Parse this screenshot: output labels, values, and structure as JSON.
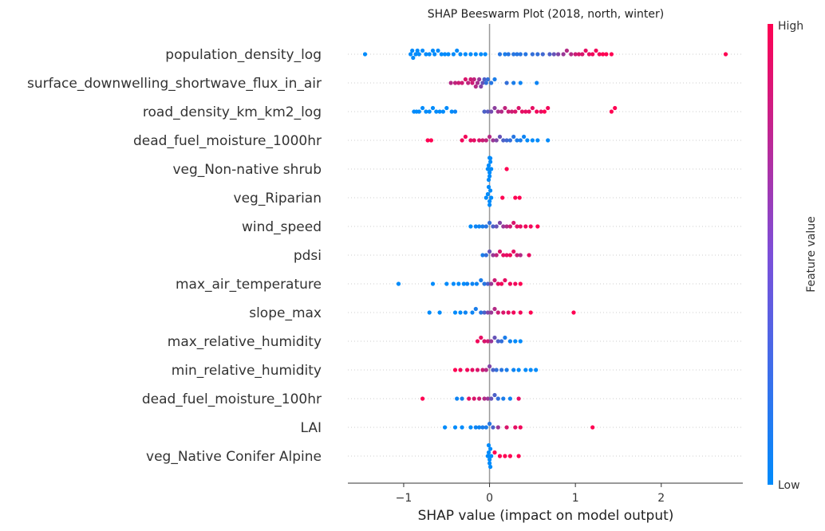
{
  "chart_data": {
    "type": "scatter",
    "subtype": "beeswarm",
    "title": "SHAP Beeswarm Plot (2018, north, winter)",
    "xlabel": "SHAP value (impact on model output)",
    "xlim": [
      -1.65,
      2.95
    ],
    "xticks": [
      -1,
      0,
      1,
      2
    ],
    "xtick_labels": [
      "−1",
      "0",
      "1",
      "2"
    ],
    "colorbar": {
      "label": "Feature value",
      "high_label": "High",
      "low_label": "Low",
      "low_color": "#008bfb",
      "high_color": "#ff0052"
    },
    "features": [
      {
        "name": "population_density_log",
        "points": [
          [
            -1.45,
            0.0
          ],
          [
            -0.92,
            0.0
          ],
          [
            -0.9,
            0.0
          ],
          [
            -0.89,
            0.0
          ],
          [
            -0.86,
            0.0
          ],
          [
            -0.84,
            0.0
          ],
          [
            -0.82,
            0.0
          ],
          [
            -0.78,
            0.0
          ],
          [
            -0.74,
            0.0
          ],
          [
            -0.7,
            0.0
          ],
          [
            -0.66,
            0.0
          ],
          [
            -0.64,
            0.0
          ],
          [
            -0.6,
            0.0
          ],
          [
            -0.56,
            0.0
          ],
          [
            -0.52,
            0.0
          ],
          [
            -0.48,
            0.0
          ],
          [
            -0.42,
            0.0
          ],
          [
            -0.38,
            0.0
          ],
          [
            -0.34,
            0.0
          ],
          [
            -0.28,
            0.0
          ],
          [
            -0.22,
            0.0
          ],
          [
            -0.16,
            0.0
          ],
          [
            -0.1,
            0.0
          ],
          [
            -0.05,
            0.0
          ],
          [
            0.12,
            0.15
          ],
          [
            0.18,
            0.1
          ],
          [
            0.22,
            0.15
          ],
          [
            0.28,
            0.15
          ],
          [
            0.32,
            0.15
          ],
          [
            0.36,
            0.15
          ],
          [
            0.42,
            0.15
          ],
          [
            0.5,
            0.2
          ],
          [
            0.56,
            0.2
          ],
          [
            0.62,
            0.25
          ],
          [
            0.7,
            0.3
          ],
          [
            0.75,
            0.4
          ],
          [
            0.8,
            0.5
          ],
          [
            0.86,
            0.6
          ],
          [
            0.9,
            0.7
          ],
          [
            0.95,
            0.7
          ],
          [
            1.0,
            0.8
          ],
          [
            1.04,
            0.85
          ],
          [
            1.08,
            0.85
          ],
          [
            1.12,
            0.9
          ],
          [
            1.16,
            0.9
          ],
          [
            1.2,
            0.95
          ],
          [
            1.24,
            0.95
          ],
          [
            1.28,
            0.95
          ],
          [
            1.32,
            1.0
          ],
          [
            1.36,
            1.0
          ],
          [
            1.42,
            1.0
          ],
          [
            2.75,
            1.0
          ]
        ]
      },
      {
        "name": "surface_downwelling_shortwave_flux_in_air",
        "points": [
          [
            -0.45,
            0.7
          ],
          [
            -0.4,
            0.75
          ],
          [
            -0.36,
            0.8
          ],
          [
            -0.32,
            0.8
          ],
          [
            -0.28,
            0.85
          ],
          [
            -0.25,
            0.75
          ],
          [
            -0.22,
            0.8
          ],
          [
            -0.2,
            0.8
          ],
          [
            -0.18,
            0.75
          ],
          [
            -0.16,
            0.7
          ],
          [
            -0.14,
            0.65
          ],
          [
            -0.12,
            0.6
          ],
          [
            -0.1,
            0.5
          ],
          [
            -0.08,
            0.4
          ],
          [
            -0.06,
            0.3
          ],
          [
            -0.04,
            0.2
          ],
          [
            -0.02,
            0.2
          ],
          [
            0.02,
            0.15
          ],
          [
            0.06,
            0.1
          ],
          [
            0.2,
            0.2
          ],
          [
            0.28,
            0.1
          ],
          [
            0.36,
            0.05
          ],
          [
            0.55,
            0.05
          ]
        ]
      },
      {
        "name": "road_density_km_km2_log",
        "points": [
          [
            -0.88,
            0.0
          ],
          [
            -0.85,
            0.0
          ],
          [
            -0.82,
            0.0
          ],
          [
            -0.78,
            0.0
          ],
          [
            -0.74,
            0.0
          ],
          [
            -0.7,
            0.0
          ],
          [
            -0.66,
            0.0
          ],
          [
            -0.62,
            0.0
          ],
          [
            -0.58,
            0.0
          ],
          [
            -0.54,
            0.0
          ],
          [
            -0.5,
            0.0
          ],
          [
            -0.44,
            0.0
          ],
          [
            -0.4,
            0.05
          ],
          [
            -0.06,
            0.3
          ],
          [
            -0.02,
            0.35
          ],
          [
            0.02,
            0.45
          ],
          [
            0.06,
            0.55
          ],
          [
            0.1,
            0.65
          ],
          [
            0.14,
            0.7
          ],
          [
            0.18,
            0.75
          ],
          [
            0.22,
            0.8
          ],
          [
            0.26,
            0.8
          ],
          [
            0.3,
            0.85
          ],
          [
            0.34,
            0.85
          ],
          [
            0.38,
            0.9
          ],
          [
            0.42,
            0.9
          ],
          [
            0.46,
            0.9
          ],
          [
            0.5,
            0.9
          ],
          [
            0.55,
            0.95
          ],
          [
            0.6,
            0.9
          ],
          [
            0.64,
            1.0
          ],
          [
            0.68,
            0.95
          ],
          [
            1.42,
            1.0
          ],
          [
            1.46,
            1.0
          ]
        ]
      },
      {
        "name": "dead_fuel_moisture_1000hr",
        "points": [
          [
            -0.72,
            1.0
          ],
          [
            -0.68,
            1.0
          ],
          [
            -0.32,
            0.95
          ],
          [
            -0.28,
            0.95
          ],
          [
            -0.22,
            0.9
          ],
          [
            -0.18,
            0.9
          ],
          [
            -0.12,
            0.85
          ],
          [
            -0.08,
            0.8
          ],
          [
            -0.04,
            0.75
          ],
          [
            0.0,
            0.7
          ],
          [
            0.04,
            0.6
          ],
          [
            0.08,
            0.5
          ],
          [
            0.12,
            0.4
          ],
          [
            0.16,
            0.3
          ],
          [
            0.2,
            0.25
          ],
          [
            0.24,
            0.2
          ],
          [
            0.28,
            0.15
          ],
          [
            0.32,
            0.1
          ],
          [
            0.36,
            0.1
          ],
          [
            0.4,
            0.05
          ],
          [
            0.44,
            0.0
          ],
          [
            0.5,
            0.0
          ],
          [
            0.56,
            0.0
          ],
          [
            0.68,
            0.0
          ]
        ]
      },
      {
        "name": "veg_Non-native shrub",
        "points": [
          [
            -0.02,
            0.0
          ],
          [
            -0.01,
            0.0
          ],
          [
            0.0,
            0.0
          ],
          [
            0.01,
            0.0
          ],
          [
            0.02,
            0.0
          ],
          [
            0.0,
            0.0
          ],
          [
            0.01,
            0.0
          ],
          [
            -0.01,
            0.0
          ],
          [
            0.0,
            0.0
          ],
          [
            0.2,
            1.0
          ]
        ]
      },
      {
        "name": "veg_Riparian",
        "points": [
          [
            -0.04,
            0.0
          ],
          [
            -0.02,
            0.0
          ],
          [
            0.0,
            0.0
          ],
          [
            0.01,
            0.0
          ],
          [
            0.0,
            0.0
          ],
          [
            -0.01,
            0.0
          ],
          [
            0.02,
            0.0
          ],
          [
            0.15,
            1.0
          ],
          [
            0.3,
            1.0
          ],
          [
            0.35,
            1.0
          ]
        ]
      },
      {
        "name": "wind_speed",
        "points": [
          [
            -0.22,
            0.0
          ],
          [
            -0.16,
            0.05
          ],
          [
            -0.12,
            0.05
          ],
          [
            -0.08,
            0.1
          ],
          [
            -0.04,
            0.15
          ],
          [
            0.0,
            0.2
          ],
          [
            0.04,
            0.3
          ],
          [
            0.08,
            0.4
          ],
          [
            0.12,
            0.5
          ],
          [
            0.16,
            0.6
          ],
          [
            0.2,
            0.7
          ],
          [
            0.24,
            0.8
          ],
          [
            0.28,
            0.85
          ],
          [
            0.32,
            0.9
          ],
          [
            0.36,
            0.9
          ],
          [
            0.42,
            0.95
          ],
          [
            0.48,
            0.95
          ],
          [
            0.56,
            1.0
          ]
        ]
      },
      {
        "name": "pdsi",
        "points": [
          [
            -0.08,
            0.1
          ],
          [
            -0.04,
            0.2
          ],
          [
            0.0,
            0.4
          ],
          [
            0.04,
            0.6
          ],
          [
            0.08,
            0.75
          ],
          [
            0.12,
            0.85
          ],
          [
            0.16,
            0.9
          ],
          [
            0.2,
            0.9
          ],
          [
            0.24,
            0.95
          ],
          [
            0.28,
            0.9
          ],
          [
            0.32,
            0.8
          ],
          [
            0.36,
            0.7
          ],
          [
            0.46,
            0.9
          ]
        ]
      },
      {
        "name": "max_air_temperature",
        "points": [
          [
            -1.06,
            0.0
          ],
          [
            -0.66,
            0.0
          ],
          [
            -0.5,
            0.0
          ],
          [
            -0.42,
            0.0
          ],
          [
            -0.36,
            0.0
          ],
          [
            -0.3,
            0.0
          ],
          [
            -0.26,
            0.05
          ],
          [
            -0.2,
            0.05
          ],
          [
            -0.15,
            0.05
          ],
          [
            -0.1,
            0.1
          ],
          [
            -0.06,
            0.15
          ],
          [
            -0.02,
            0.3
          ],
          [
            0.02,
            0.6
          ],
          [
            0.06,
            0.8
          ],
          [
            0.1,
            0.9
          ],
          [
            0.14,
            0.95
          ],
          [
            0.18,
            0.9
          ],
          [
            0.24,
            0.95
          ],
          [
            0.3,
            0.95
          ],
          [
            0.36,
            1.0
          ]
        ]
      },
      {
        "name": "slope_max",
        "points": [
          [
            -0.7,
            0.0
          ],
          [
            -0.58,
            0.0
          ],
          [
            -0.4,
            0.0
          ],
          [
            -0.34,
            0.0
          ],
          [
            -0.28,
            0.05
          ],
          [
            -0.2,
            0.05
          ],
          [
            -0.16,
            0.1
          ],
          [
            -0.1,
            0.15
          ],
          [
            -0.06,
            0.3
          ],
          [
            -0.02,
            0.5
          ],
          [
            0.02,
            0.6
          ],
          [
            0.06,
            0.7
          ],
          [
            0.1,
            0.8
          ],
          [
            0.16,
            0.85
          ],
          [
            0.22,
            0.9
          ],
          [
            0.28,
            0.95
          ],
          [
            0.36,
            0.95
          ],
          [
            0.48,
            1.0
          ],
          [
            0.98,
            1.0
          ]
        ]
      },
      {
        "name": "max_relative_humidity",
        "points": [
          [
            -0.14,
            0.95
          ],
          [
            -0.1,
            0.9
          ],
          [
            -0.06,
            0.85
          ],
          [
            -0.02,
            0.8
          ],
          [
            0.02,
            0.6
          ],
          [
            0.06,
            0.4
          ],
          [
            0.1,
            0.3
          ],
          [
            0.14,
            0.2
          ],
          [
            0.18,
            0.1
          ],
          [
            0.24,
            0.05
          ],
          [
            0.3,
            0.0
          ],
          [
            0.36,
            0.0
          ]
        ]
      },
      {
        "name": "min_relative_humidity",
        "points": [
          [
            -0.4,
            1.0
          ],
          [
            -0.34,
            0.95
          ],
          [
            -0.26,
            0.95
          ],
          [
            -0.2,
            0.9
          ],
          [
            -0.14,
            0.85
          ],
          [
            -0.08,
            0.8
          ],
          [
            -0.04,
            0.7
          ],
          [
            0.0,
            0.5
          ],
          [
            0.04,
            0.3
          ],
          [
            0.08,
            0.2
          ],
          [
            0.14,
            0.15
          ],
          [
            0.2,
            0.1
          ],
          [
            0.28,
            0.05
          ],
          [
            0.34,
            0.0
          ],
          [
            0.42,
            0.0
          ],
          [
            0.48,
            0.0
          ],
          [
            0.54,
            0.0
          ]
        ]
      },
      {
        "name": "dead_fuel_moisture_100hr",
        "points": [
          [
            -0.78,
            1.0
          ],
          [
            -0.38,
            0.05
          ],
          [
            -0.32,
            0.1
          ],
          [
            -0.24,
            0.9
          ],
          [
            -0.18,
            0.85
          ],
          [
            -0.12,
            0.8
          ],
          [
            -0.06,
            0.7
          ],
          [
            -0.02,
            0.6
          ],
          [
            0.02,
            0.4
          ],
          [
            0.06,
            0.3
          ],
          [
            0.1,
            0.2
          ],
          [
            0.16,
            0.1
          ],
          [
            0.24,
            0.05
          ],
          [
            0.34,
            0.9
          ]
        ]
      },
      {
        "name": "LAI",
        "points": [
          [
            -0.52,
            0.0
          ],
          [
            -0.4,
            0.0
          ],
          [
            -0.32,
            0.0
          ],
          [
            -0.22,
            0.0
          ],
          [
            -0.16,
            0.05
          ],
          [
            -0.12,
            0.05
          ],
          [
            -0.08,
            0.1
          ],
          [
            -0.04,
            0.1
          ],
          [
            0.0,
            0.15
          ],
          [
            0.04,
            0.3
          ],
          [
            0.1,
            0.6
          ],
          [
            0.2,
            0.85
          ],
          [
            0.3,
            0.9
          ],
          [
            0.36,
            0.95
          ],
          [
            1.2,
            1.0
          ]
        ]
      },
      {
        "name": "veg_Native Conifer Alpine",
        "points": [
          [
            -0.02,
            0.0
          ],
          [
            -0.01,
            0.0
          ],
          [
            0.0,
            0.0
          ],
          [
            0.01,
            0.0
          ],
          [
            0.0,
            0.0
          ],
          [
            -0.01,
            0.0
          ],
          [
            0.02,
            0.0
          ],
          [
            0.01,
            0.0
          ],
          [
            0.06,
            1.0
          ],
          [
            0.12,
            1.0
          ],
          [
            0.18,
            1.0
          ],
          [
            0.24,
            1.0
          ],
          [
            0.34,
            1.0
          ]
        ]
      }
    ]
  }
}
